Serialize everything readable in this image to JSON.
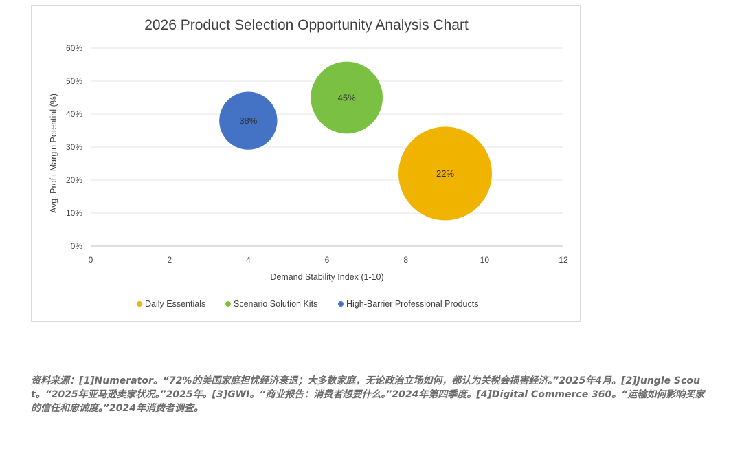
{
  "chart_data": {
    "type": "bubble",
    "title": "2026 Product Selection Opportunity Analysis Chart",
    "xlabel": "Demand Stability Index (1-10)",
    "ylabel": "Avg. Profit Margin Potential (%)",
    "xlim": [
      0,
      12
    ],
    "ylim": [
      0,
      60
    ],
    "x_ticks": [
      "0",
      "2",
      "4",
      "6",
      "8",
      "10",
      "12"
    ],
    "y_ticks": [
      "0%",
      "10%",
      "20%",
      "30%",
      "40%",
      "50%",
      "60%"
    ],
    "grid": "horizontal",
    "legend_position": "bottom",
    "series": [
      {
        "name": "Daily Essentials",
        "x": 9,
        "y": 22,
        "label": "22%",
        "color": "#f0b400",
        "size": 1.0
      },
      {
        "name": "Scenario Solution Kits",
        "x": 6.5,
        "y": 45,
        "label": "45%",
        "color": "#7ac143",
        "size": 0.77
      },
      {
        "name": "High-Barrier Professional Products",
        "x": 4,
        "y": 38,
        "label": "38%",
        "color": "#4472c4",
        "size": 0.62
      }
    ]
  },
  "footnote": {
    "text": "资料来源：[1]Numerator。“72%的美国家庭担忧经济衰退；大多数家庭，无论政治立场如何，都认为关税会损害经济。”2025年4月。[2]Jungle Scout。“2025年亚马逊卖家状况。”2025年。[3]GWI。“商业报告：消费者想要什么。”2024年第四季度。[4]Digital Commerce 360。“运输如何影响买家的信任和忠诚度。”2024年消费者调查。"
  }
}
